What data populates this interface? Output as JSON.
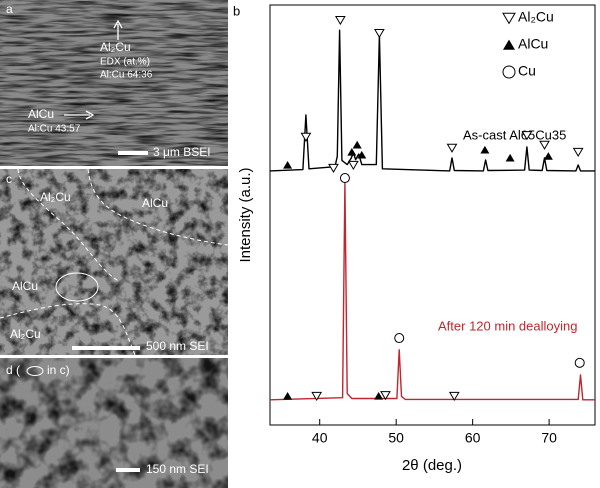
{
  "panel_a": {
    "label": "a",
    "phase_top": "Al₂Cu",
    "edx": "EDX (at.%)",
    "ratio_top": "Al:Cu 64:36",
    "phase_bottom": "AlCu",
    "ratio_bottom": "Al:Cu 43:57",
    "scale": "3 μm BSEI"
  },
  "panel_c": {
    "label": "c",
    "regions": [
      "Al₂Cu",
      "AlCu",
      "AlCu",
      "Al₂Cu"
    ],
    "scale": "500 nm SEI"
  },
  "panel_d": {
    "label": "d (",
    "label_end": "in c)",
    "scale": "150 nm SEI"
  },
  "chart_data": {
    "type": "line",
    "panel_label": "b",
    "x_label": "2θ (deg.)",
    "y_label": "Intensity (a.u.)",
    "xlim": [
      33.5,
      76
    ],
    "xticks": [
      40,
      50,
      60,
      70
    ],
    "ylim": [
      0,
      100
    ],
    "series": [
      {
        "name": "As-cast Al65Cu35",
        "color": "#000000",
        "x": [
          33.5,
          37.8,
          38.2,
          38.6,
          42.0,
          42.3,
          42.6,
          42.9,
          43.6,
          44.1,
          44.4,
          44.7,
          45.1,
          45.5,
          47.4,
          47.8,
          48.2,
          57.0,
          57.3,
          57.6,
          61.4,
          61.7,
          62.0,
          66.8,
          67.1,
          67.4,
          69.1,
          69.4,
          69.7,
          73.5,
          73.8,
          74.1,
          76
        ],
        "values": [
          60.5,
          60.8,
          73.8,
          61,
          61.5,
          64,
          94,
          63,
          62,
          63.5,
          64.8,
          63.2,
          64.5,
          62,
          62,
          92.9,
          61,
          60.5,
          63.6,
          60.6,
          60.5,
          63.1,
          60.6,
          60.7,
          66.2,
          60.7,
          60.6,
          63.6,
          60.6,
          60.5,
          61.9,
          60.5,
          60.5
        ]
      },
      {
        "name": "After 120 min dealloying",
        "color": "#c0262d",
        "x": [
          33.5,
          43.0,
          43.3,
          43.6,
          44.2,
          50.1,
          50.4,
          50.7,
          51.2,
          73.8,
          74.1,
          74.4,
          76
        ],
        "values": [
          6.0,
          6.5,
          57.6,
          7.5,
          6.3,
          6.3,
          17.9,
          6.8,
          6.1,
          6.1,
          11.9,
          6.0,
          6.0
        ]
      }
    ],
    "legend": [
      {
        "name": "Al₂Cu",
        "symbol": "triangle-down-open",
        "x": [
          38.2,
          41.8,
          42.7,
          44.4,
          47.8,
          57.3,
          67.1,
          69.4,
          73.8,
          39.6,
          48.6,
          57.6
        ],
        "y": [
          68.6,
          61.2,
          96.4,
          61.9,
          93.3,
          66,
          69,
          66.7,
          65,
          6.9,
          7.1,
          6.9
        ]
      },
      {
        "name": "AlCu",
        "symbol": "triangle-up-filled",
        "x": [
          35.8,
          44.2,
          44.9,
          45.5,
          61.6,
          64.9,
          69.9,
          35.8,
          47.7
        ],
        "y": [
          61.9,
          65,
          66.7,
          64.3,
          65.5,
          63.6,
          64,
          6.9,
          6.9
        ]
      },
      {
        "name": "Cu",
        "symbol": "circle-open",
        "x": [
          43.3,
          50.4,
          74.0
        ],
        "y": [
          58.8,
          20.7,
          14.8
        ]
      }
    ]
  }
}
